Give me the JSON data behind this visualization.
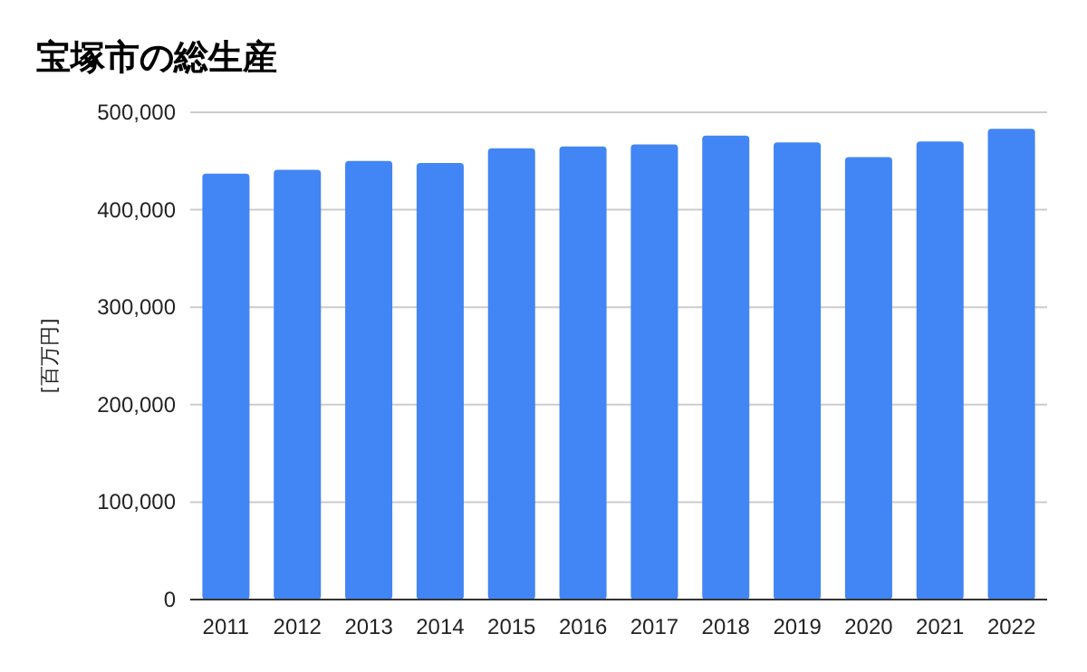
{
  "chart_data": {
    "type": "bar",
    "title": "宝塚市の総生産",
    "ylabel": "[百万円]",
    "categories": [
      "2011",
      "2012",
      "2013",
      "2014",
      "2015",
      "2016",
      "2017",
      "2018",
      "2019",
      "2020",
      "2021",
      "2022"
    ],
    "series": [
      {
        "color": "#4285f4",
        "values": [
          437000,
          441000,
          450000,
          448000,
          463000,
          465000,
          467000,
          476000,
          469000,
          454000,
          470000,
          483000
        ]
      }
    ],
    "ylim": [
      0,
      500000
    ],
    "yticks": [
      {
        "value": 0,
        "label": "0"
      },
      {
        "value": 100000,
        "label": "100,000"
      },
      {
        "value": 200000,
        "label": "200,000"
      },
      {
        "value": 300000,
        "label": "300,000"
      },
      {
        "value": 400000,
        "label": "400,000"
      },
      {
        "value": 500000,
        "label": "500,000"
      }
    ],
    "grid": "y"
  }
}
